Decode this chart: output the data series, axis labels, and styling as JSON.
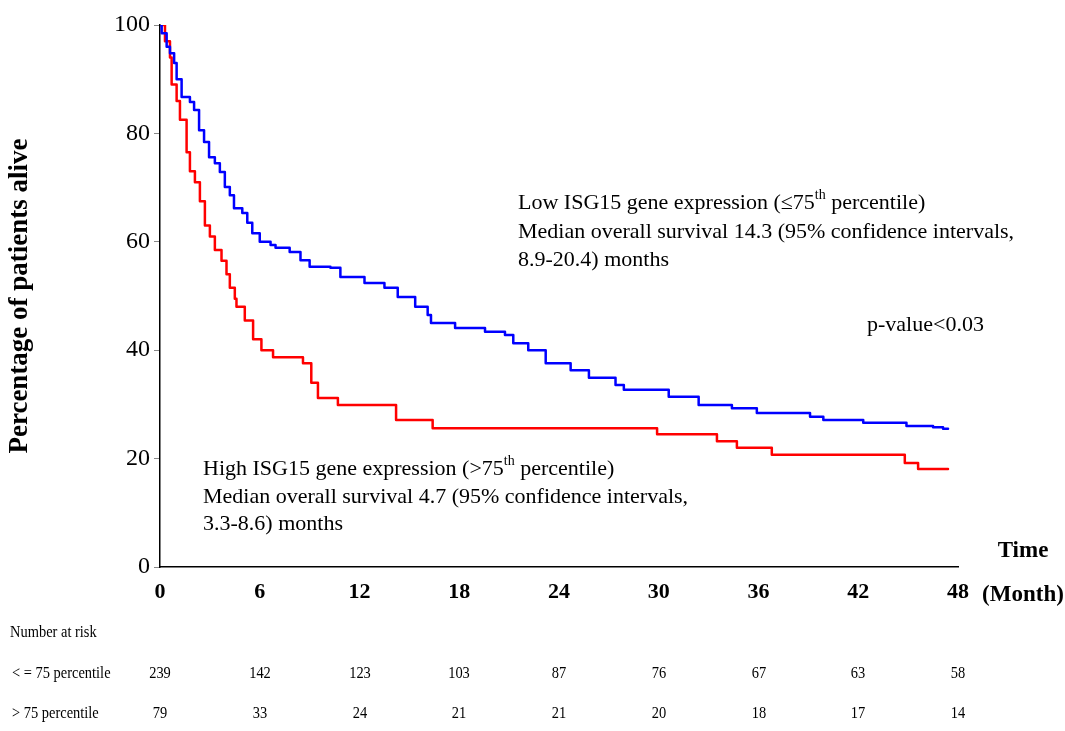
{
  "chart_data": {
    "type": "step",
    "ylabel": "Percentage of patients alive",
    "xlabel": "Time (Month)",
    "xlim": [
      0,
      48
    ],
    "xticks": [
      0,
      6,
      12,
      18,
      24,
      30,
      36,
      42,
      48
    ],
    "ylim": [
      0,
      100
    ],
    "yticks": [
      0,
      20,
      40,
      60,
      80,
      100
    ],
    "grid": false,
    "legend": false,
    "marker": "none",
    "line_style": "solid",
    "series": [
      {
        "color": "#0000ff",
        "x": [
          0,
          0.1,
          0.4,
          0.6,
          0.85,
          1.0,
          1.3,
          1.8,
          2.05,
          2.35,
          2.65,
          2.95,
          3.3,
          3.6,
          3.9,
          4.2,
          4.45,
          4.95,
          5.25,
          5.55,
          6.0,
          6.65,
          6.95,
          7.8,
          8.45,
          9.0,
          10.25,
          10.85,
          12.3,
          13.5,
          14.3,
          15.35,
          16.1,
          16.3,
          17.75,
          19.55,
          20.75,
          21.25,
          22.15,
          23.2,
          24.7,
          25.8,
          27.4,
          27.9,
          30.6,
          32.4,
          34.4,
          35.9,
          39.1,
          39.9,
          42.3,
          44.9,
          46.5,
          47.1,
          47.4
        ],
        "values": [
          100,
          98.5,
          96,
          94.8,
          93,
          90,
          86.7,
          85.8,
          84.3,
          80.6,
          78.4,
          75.6,
          74.5,
          72.9,
          70.1,
          68.6,
          66.2,
          65.3,
          63.5,
          61.6,
          60,
          59.4,
          58.9,
          58.1,
          56.6,
          55.4,
          55.2,
          53.5,
          52.4,
          51.5,
          49.8,
          48,
          46.5,
          45,
          44.1,
          43.4,
          42.8,
          41.3,
          40,
          37.6,
          36.3,
          34.9,
          33.6,
          32.7,
          31.4,
          29.9,
          29.3,
          28.4,
          27.7,
          27.1,
          26.6,
          26,
          25.8,
          25.5,
          25.5
        ]
      },
      {
        "color": "#ff0000",
        "x": [
          0,
          0.3,
          0.6,
          0.7,
          1.0,
          1.2,
          1.6,
          1.8,
          2.1,
          2.4,
          2.7,
          3.0,
          3.3,
          3.7,
          4.0,
          4.2,
          4.5,
          4.6,
          5.1,
          5.6,
          6.1,
          6.8,
          8.6,
          9.1,
          9.5,
          10.7,
          14.2,
          16.4,
          29.9,
          33.5,
          34.7,
          36.8,
          44.8,
          45.6,
          47.4
        ],
        "values": [
          100,
          97,
          94,
          89,
          86,
          82.5,
          76.5,
          73,
          71,
          67.5,
          63,
          61,
          58.5,
          56.5,
          54,
          51.5,
          49.5,
          48,
          45.5,
          42,
          40,
          38.7,
          37.6,
          34,
          31.2,
          29.9,
          27.1,
          25.6,
          24.5,
          23.2,
          22,
          20.7,
          19.2,
          18.1,
          18.1
        ]
      }
    ],
    "annotations": [
      "Low ISG15 gene expression (≤75$^{th}$ percentile)",
      "Median overall survival 14.3 (95% confidence intervals,",
      "8.9-20.4) months",
      "p-value<0.03",
      "High ISG15 gene expression (>75$^{th}$ percentile)",
      "Median overall survival 4.7 (95% confidence intervals,",
      "3.3-8.6) months",
      "Number at risk",
      "< = 75 percentile",
      "239 142 123 103 87 76 67 63 58",
      "> 75 percentile",
      "79 33 24 21 21 20 18 17 14"
    ]
  }
}
